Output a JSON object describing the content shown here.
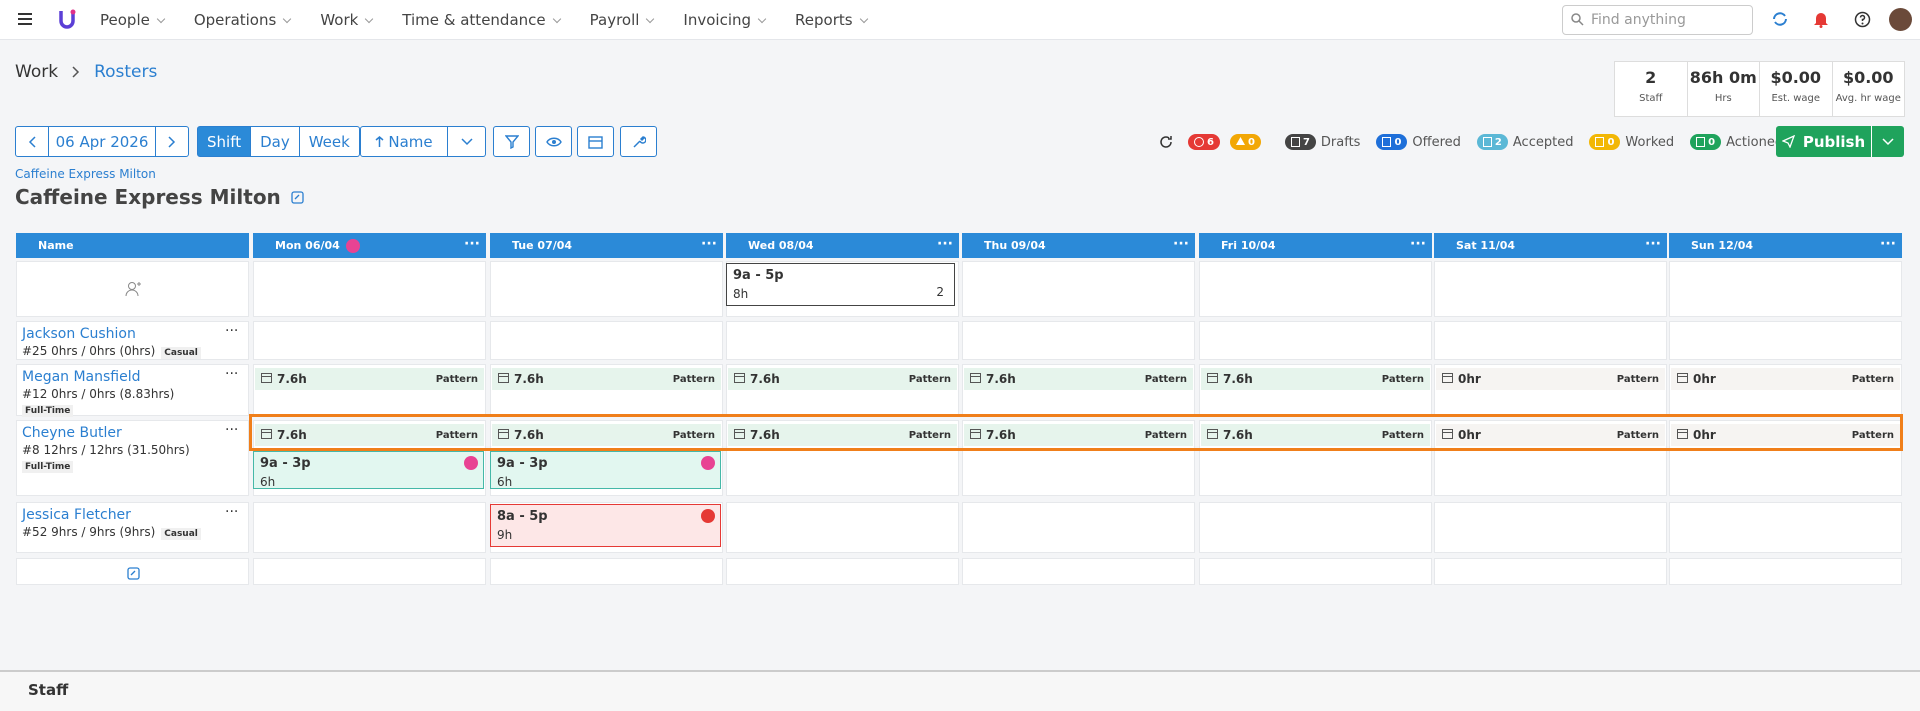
{
  "nav": {
    "menu": [
      "People",
      "Operations",
      "Work",
      "Time & attendance",
      "Payroll",
      "Invoicing",
      "Reports"
    ],
    "search_placeholder": "Find anything"
  },
  "breadcrumb": [
    "Work",
    "Rosters"
  ],
  "stats": [
    {
      "value": "2",
      "label": "Staff"
    },
    {
      "value": "86h 0m",
      "label": "Hrs"
    },
    {
      "value": "$0.00",
      "label": "Est. wage"
    },
    {
      "value": "$0.00",
      "label": "Avg. hr wage"
    }
  ],
  "toolbar": {
    "date": "06 Apr 2026",
    "views": [
      "Shift",
      "Day",
      "Week"
    ],
    "sort": "Name"
  },
  "status": {
    "errors": "6",
    "warnings": "0",
    "items": [
      {
        "count": "7",
        "label": "Drafts",
        "color": "#444444"
      },
      {
        "count": "0",
        "label": "Offered",
        "color": "#1e6fd9"
      },
      {
        "count": "2",
        "label": "Accepted",
        "color": "#5bb8d6"
      },
      {
        "count": "0",
        "label": "Worked",
        "color": "#f2b705"
      },
      {
        "count": "0",
        "label": "Actioned",
        "color": "#1fa35c"
      }
    ]
  },
  "publish": "Publish",
  "location": {
    "link": "Caffeine Express Milton",
    "title": "Caffeine Express Milton"
  },
  "grid": {
    "name_header": "Name",
    "days": [
      "Mon 06/04",
      "Tue 07/04",
      "Wed 08/04",
      "Thu 09/04",
      "Fri 10/04",
      "Sat 11/04",
      "Sun 12/04"
    ],
    "open_shifts": [
      null,
      null,
      {
        "time": "9a - 5p",
        "hours": "8h",
        "count": "2"
      },
      null,
      null,
      null,
      null
    ],
    "employees": [
      {
        "name": "Jackson Cushion",
        "meta": "#25 0hrs / 0hrs (0hrs)",
        "type": "Casual",
        "patterns": null,
        "shifts": null
      },
      {
        "name": "Megan Mansfield",
        "meta": "#12 0hrs / 0hrs (8.83hrs)",
        "type": "Full-Time",
        "patterns": [
          {
            "hours": "7.6h",
            "label": "Pattern"
          },
          {
            "hours": "7.6h",
            "label": "Pattern"
          },
          {
            "hours": "7.6h",
            "label": "Pattern"
          },
          {
            "hours": "7.6h",
            "label": "Pattern"
          },
          {
            "hours": "7.6h",
            "label": "Pattern"
          },
          {
            "hours": "0hr",
            "label": "Pattern"
          },
          {
            "hours": "0hr",
            "label": "Pattern"
          }
        ],
        "shifts": null
      },
      {
        "name": "Cheyne Butler",
        "meta": "#8 12hrs / 12hrs (31.50hrs)",
        "type": "Full-Time",
        "patterns": [
          {
            "hours": "7.6h",
            "label": "Pattern"
          },
          {
            "hours": "7.6h",
            "label": "Pattern"
          },
          {
            "hours": "7.6h",
            "label": "Pattern"
          },
          {
            "hours": "7.6h",
            "label": "Pattern"
          },
          {
            "hours": "7.6h",
            "label": "Pattern"
          },
          {
            "hours": "0hr",
            "label": "Pattern"
          },
          {
            "hours": "0hr",
            "label": "Pattern"
          }
        ],
        "shifts": [
          {
            "time": "9a - 3p",
            "hours": "6h",
            "state": "accepted"
          },
          {
            "time": "9a - 3p",
            "hours": "6h",
            "state": "accepted"
          },
          null,
          null,
          null,
          null,
          null
        ]
      },
      {
        "name": "Jessica Fletcher",
        "meta": "#52 9hrs / 9hrs (9hrs)",
        "type": "Casual",
        "patterns": null,
        "shifts": [
          null,
          {
            "time": "8a - 5p",
            "hours": "9h",
            "state": "error"
          },
          null,
          null,
          null,
          null,
          null
        ]
      }
    ]
  },
  "footer": "Staff"
}
